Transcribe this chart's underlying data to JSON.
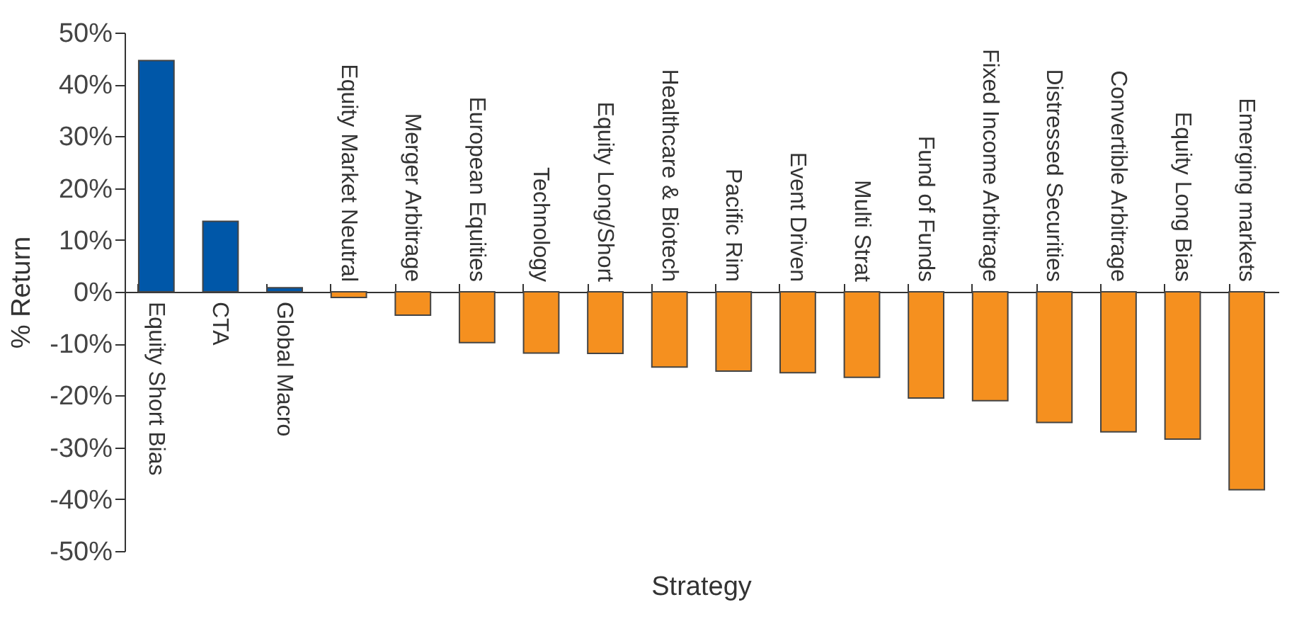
{
  "chart_data": {
    "type": "bar",
    "xlabel": "Strategy",
    "ylabel": "% Return",
    "categories": [
      "Equity Short Bias",
      "CTA",
      "Global Macro",
      "Equity Market Neutral",
      "Merger Arbitrage",
      "European Equities",
      "Technology",
      "Equity Long/Short",
      "Healthcare & Biotech",
      "Pacific Rim",
      "Event Driven",
      "Multi Strat",
      "Fund of Funds",
      "Fixed Income Arbitrage",
      "Distressed Securities",
      "Convertible Arbitrage",
      "Equity Long Bias",
      "Emerging markets"
    ],
    "values": [
      44.6,
      13.6,
      0.8,
      -1.1,
      -4.5,
      -9.8,
      -11.8,
      -11.9,
      -14.5,
      -15.3,
      -15.6,
      -16.5,
      -20.5,
      -21.0,
      -25.2,
      -27.0,
      -28.4,
      -38.2
    ],
    "colors": [
      "#0057a8",
      "#0057a8",
      "#0057a8",
      "#f5901f",
      "#f5901f",
      "#f5901f",
      "#f5901f",
      "#f5901f",
      "#f5901f",
      "#f5901f",
      "#f5901f",
      "#f5901f",
      "#f5901f",
      "#f5901f",
      "#f5901f",
      "#f5901f",
      "#f5901f",
      "#f5901f"
    ],
    "ylim": [
      -50,
      50
    ],
    "yticks": [
      {
        "value": -50,
        "label": "-50%"
      },
      {
        "value": -40,
        "label": "-40%"
      },
      {
        "value": -30,
        "label": "-30%"
      },
      {
        "value": -20,
        "label": "-20%"
      },
      {
        "value": -10,
        "label": "-10%"
      },
      {
        "value": 0,
        "label": "0%"
      },
      {
        "value": 10,
        "label": "10%"
      },
      {
        "value": 20,
        "label": "20%"
      },
      {
        "value": 30,
        "label": "30%"
      },
      {
        "value": 40,
        "label": "40%"
      },
      {
        "value": 50,
        "label": "50%"
      }
    ],
    "grid": false
  }
}
